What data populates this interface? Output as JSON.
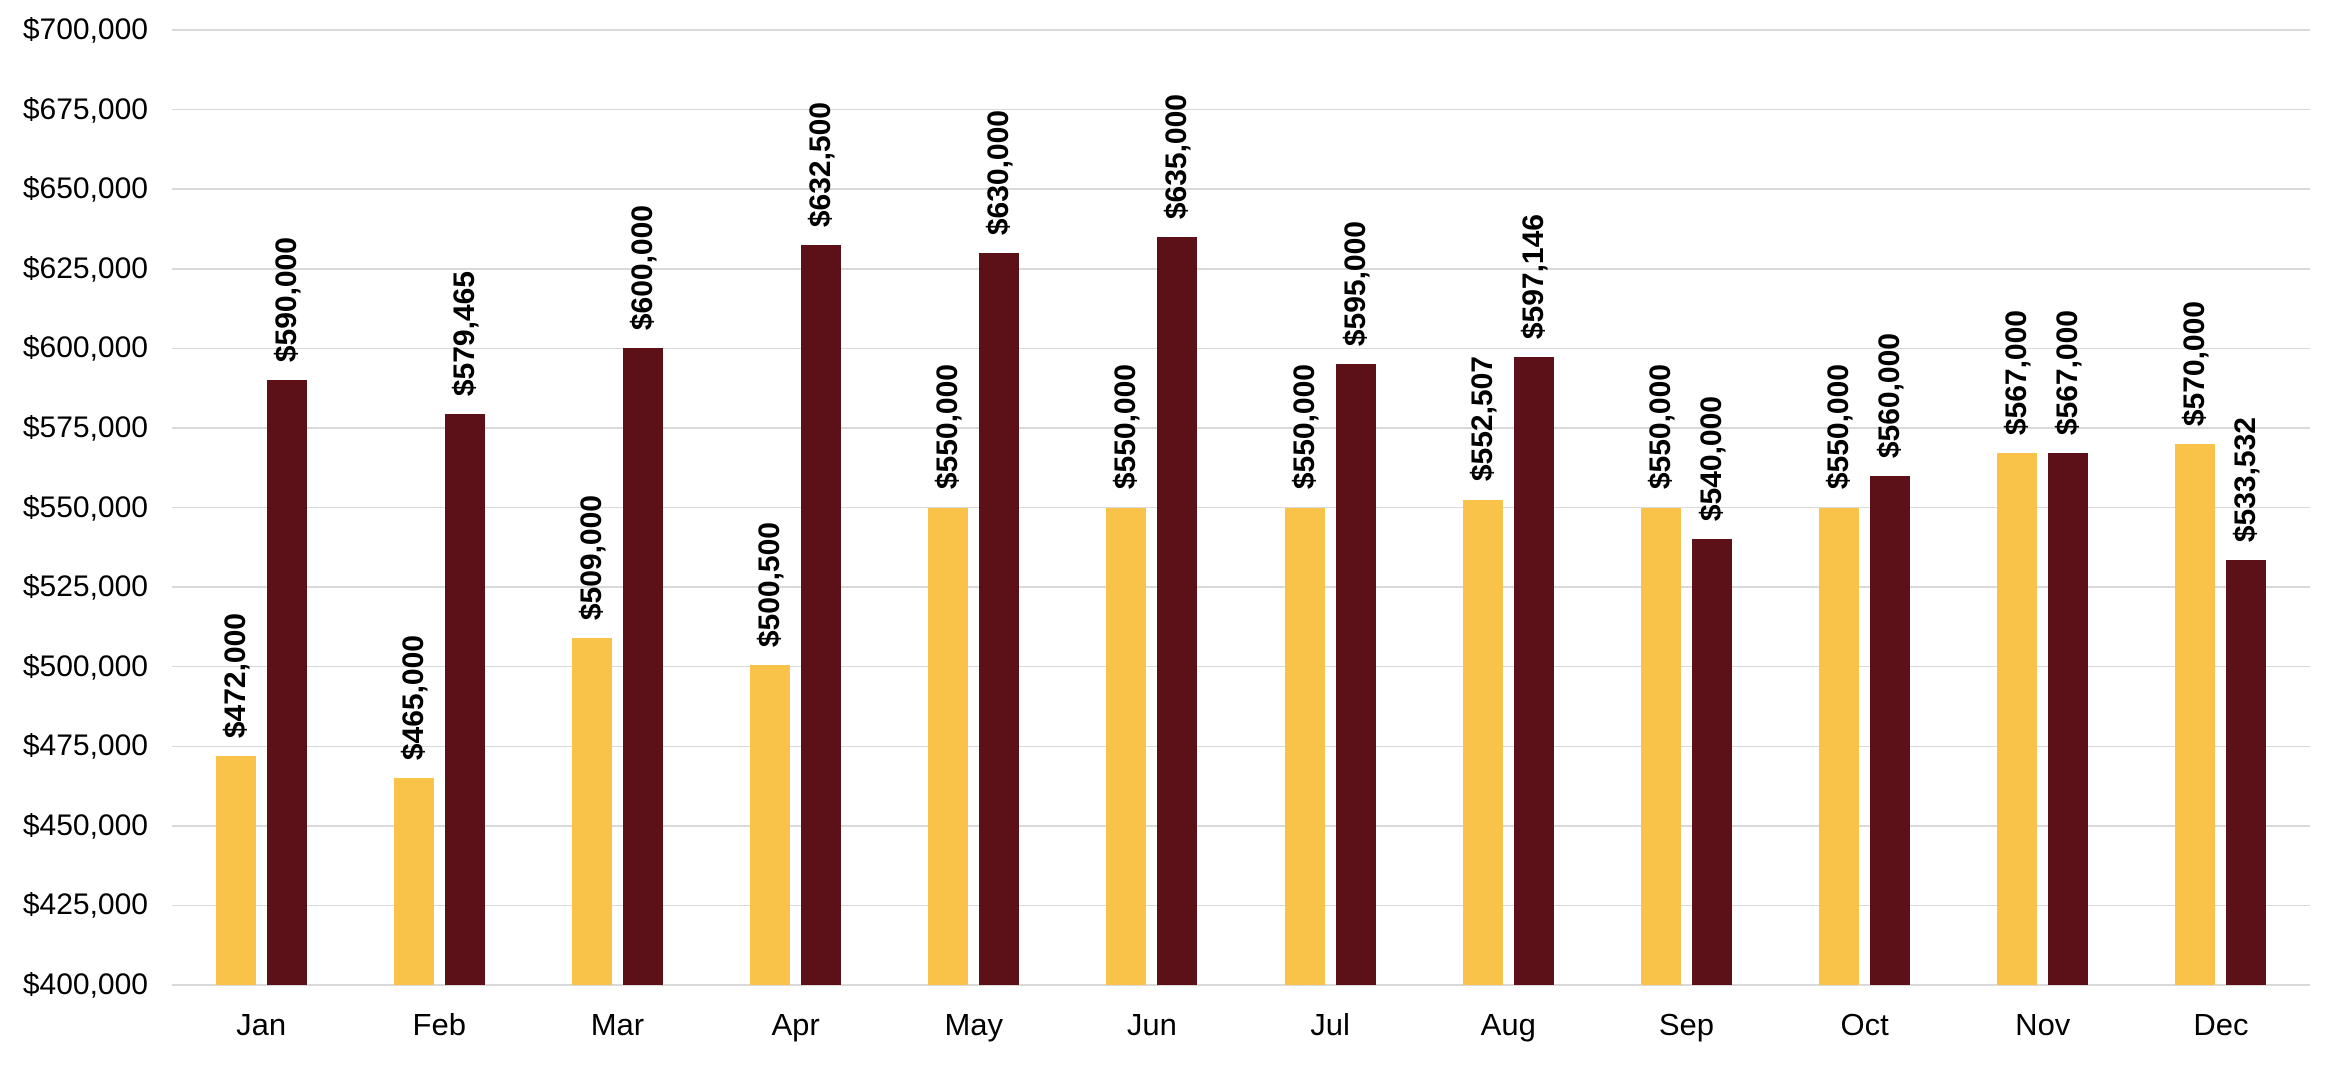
{
  "chart_data": {
    "type": "bar",
    "title": "",
    "xlabel": "",
    "ylabel": "",
    "categories": [
      "Jan",
      "Feb",
      "Mar",
      "Apr",
      "May",
      "Jun",
      "Jul",
      "Aug",
      "Sep",
      "Oct",
      "Nov",
      "Dec"
    ],
    "series": [
      {
        "name": "gold-series",
        "color": "#f9c34a",
        "values": [
          472000,
          465000,
          509000,
          500500,
          550000,
          550000,
          550000,
          552507,
          550000,
          550000,
          567000,
          570000
        ],
        "labels": [
          "$472,000",
          "$465,000",
          "$509,000",
          "$500,500",
          "$550,000",
          "$550,000",
          "$550,000",
          "$552,507",
          "$550,000",
          "$550,000",
          "$567,000",
          "$570,000"
        ]
      },
      {
        "name": "maroon-series",
        "color": "#5c1118",
        "values": [
          590000,
          579465,
          600000,
          632500,
          630000,
          635000,
          595000,
          597146,
          540000,
          560000,
          567000,
          533532
        ],
        "labels": [
          "$590,000",
          "$579,465",
          "$600,000",
          "$632,500",
          "$630,000",
          "$635,000",
          "$595,000",
          "$597,146",
          "$540,000",
          "$560,000",
          "$567,000",
          "$533,532"
        ]
      }
    ],
    "ylim": [
      400000,
      700000
    ],
    "ytick_step": 25000,
    "ytick_labels": [
      "$400,000",
      "$425,000",
      "$450,000",
      "$475,000",
      "$500,000",
      "$525,000",
      "$550,000",
      "$575,000",
      "$600,000",
      "$625,000",
      "$650,000",
      "$675,000",
      "$700,000"
    ],
    "grid": true,
    "grid_color": "#d9d9d9",
    "legend": false,
    "data_label_rotation": -90,
    "background": "#ffffff"
  }
}
